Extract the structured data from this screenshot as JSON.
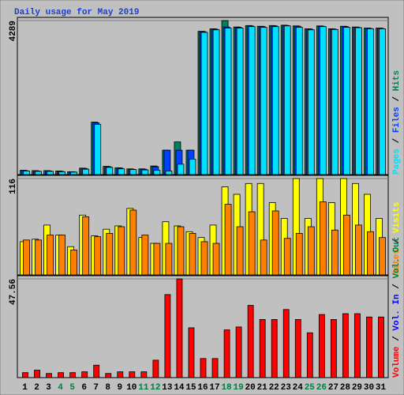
{
  "chart_data": [
    {
      "type": "bar",
      "title": "Daily usage for May 2019",
      "legend_separator": " / ",
      "ylim": [
        0,
        4289
      ],
      "yticks": [
        4289
      ],
      "series": [
        {
          "name": "Hits",
          "color": "#00805c",
          "values": [
            120,
            110,
            110,
            100,
            80,
            180,
            1460,
            230,
            190,
            160,
            160,
            240,
            680,
            910,
            680,
            3990,
            4060,
            4289,
            4110,
            4150,
            4130,
            4150,
            4160,
            4140,
            4060,
            4140,
            4060,
            4130,
            4110,
            4080,
            4080
          ]
        },
        {
          "name": "Files",
          "color": "#0040ff",
          "values": [
            110,
            100,
            100,
            90,
            75,
            170,
            1440,
            220,
            180,
            150,
            150,
            220,
            680,
            680,
            680,
            3980,
            4050,
            4110,
            4100,
            4140,
            4120,
            4140,
            4150,
            4130,
            4050,
            4130,
            4050,
            4120,
            4100,
            4070,
            4070
          ]
        },
        {
          "name": "Pages",
          "color": "#00e0ff",
          "values": [
            100,
            90,
            90,
            80,
            70,
            150,
            1400,
            200,
            160,
            140,
            130,
            120,
            100,
            290,
            430,
            3960,
            4030,
            4080,
            4080,
            4120,
            4100,
            4120,
            4140,
            4100,
            4030,
            4120,
            4040,
            4100,
            4090,
            4060,
            4060
          ]
        }
      ]
    },
    {
      "type": "bar",
      "ylim": [
        0,
        116
      ],
      "yticks": [
        116
      ],
      "series": [
        {
          "name": "Visits",
          "color": "#ffff00",
          "values": [
            40,
            43,
            60,
            48,
            34,
            72,
            47,
            55,
            59,
            80,
            45,
            38,
            64,
            59,
            52,
            45,
            60,
            106,
            97,
            110,
            110,
            87,
            68,
            116,
            68,
            116,
            87,
            116,
            110,
            97,
            68
          ]
        },
        {
          "name": "Sites",
          "color": "#ff8000",
          "values": [
            42,
            42,
            48,
            48,
            30,
            70,
            46,
            50,
            58,
            78,
            48,
            38,
            38,
            58,
            50,
            40,
            38,
            85,
            58,
            76,
            42,
            77,
            44,
            50,
            58,
            88,
            54,
            72,
            60,
            52,
            45
          ]
        }
      ]
    },
    {
      "type": "bar",
      "ylim": [
        0,
        47.56
      ],
      "yticks": [
        47.56
      ],
      "categories": [
        "1",
        "2",
        "3",
        "4",
        "5",
        "6",
        "7",
        "8",
        "9",
        "10",
        "11",
        "12",
        "13",
        "14",
        "15",
        "16",
        "17",
        "18",
        "19",
        "20",
        "21",
        "22",
        "23",
        "24",
        "25",
        "26",
        "27",
        "28",
        "29",
        "30",
        "31"
      ],
      "category_colors": [
        "#000000",
        "#000000",
        "#000000",
        "#008040",
        "#008040",
        "#000000",
        "#000000",
        "#000000",
        "#000000",
        "#000000",
        "#008040",
        "#008040",
        "#000000",
        "#000000",
        "#000000",
        "#000000",
        "#000000",
        "#008040",
        "#008040",
        "#000000",
        "#000000",
        "#000000",
        "#000000",
        "#000000",
        "#008040",
        "#008040",
        "#000000",
        "#000000",
        "#000000",
        "#000000",
        "#000000"
      ],
      "series": [
        {
          "name": "Volume",
          "color": "#ff0000",
          "values": [
            2.4,
            3.6,
            2,
            2.4,
            2.4,
            2.8,
            6,
            2,
            2.8,
            2.8,
            2.8,
            8.4,
            40,
            47.56,
            24,
            9.2,
            9.2,
            23,
            24.4,
            34.8,
            28,
            28,
            32.8,
            28,
            21.6,
            30.4,
            28,
            30.8,
            30.8,
            29.2,
            29.2
          ]
        }
      ],
      "legend_only": [
        {
          "name": "Vol. In",
          "color": "#0000ff"
        },
        {
          "name": "Vol. Out",
          "color": "#008040"
        }
      ]
    }
  ]
}
